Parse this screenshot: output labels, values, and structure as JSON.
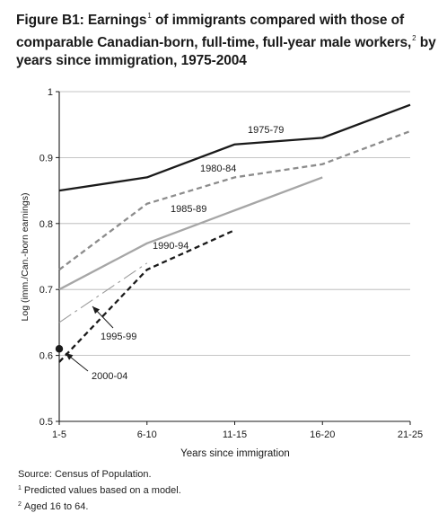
{
  "figure": {
    "title_part1": "Figure B1: Earnings",
    "title_sup1": "1",
    "title_part2": " of immigrants compared with those of comparable Canadian-born, full-time, full-year male workers,",
    "title_sup2": "2",
    "title_part3": " by years since immigration, 1975-2004"
  },
  "notes": {
    "source": "Source: Census of Population.",
    "footnote1_marker": "1",
    "footnote1": "Predicted values based on a model.",
    "footnote2_marker": "2",
    "footnote2": "Aged 16 to 64."
  },
  "chart_data": {
    "type": "line",
    "xlabel": "Years since immigration",
    "ylabel": "Log (imm./Can.-born earnings)",
    "categories": [
      "1-5",
      "6-10",
      "11-15",
      "16-20",
      "21-25"
    ],
    "y_ticks": [
      "0.5",
      "0.6",
      "0.7",
      "0.8",
      "0.9",
      "1"
    ],
    "ylim": [
      0.5,
      1
    ],
    "grid": true,
    "series": [
      {
        "name": "1975-79",
        "values": [
          0.85,
          0.87,
          0.92,
          0.93,
          0.98
        ],
        "color": "#1a1a1a",
        "dash": "solid"
      },
      {
        "name": "1980-84",
        "values": [
          0.73,
          0.83,
          0.87,
          0.89,
          0.94
        ],
        "color": "#8c8c8c",
        "dash": "dashed"
      },
      {
        "name": "1985-89",
        "values": [
          0.7,
          0.77,
          0.82,
          0.87,
          null
        ],
        "color": "#a6a6a6",
        "dash": "solid"
      },
      {
        "name": "1990-94",
        "values": [
          0.59,
          0.73,
          0.79,
          null,
          null
        ],
        "color": "#1a1a1a",
        "dash": "dashed"
      },
      {
        "name": "1995-99",
        "values": [
          0.65,
          0.74,
          null,
          null,
          null
        ],
        "color": "#9a9a9a",
        "dash": "longdash"
      },
      {
        "name": "2000-04",
        "values": [
          0.61,
          null,
          null,
          null,
          null
        ],
        "color": "#1a1a1a",
        "dash": "point"
      }
    ]
  }
}
